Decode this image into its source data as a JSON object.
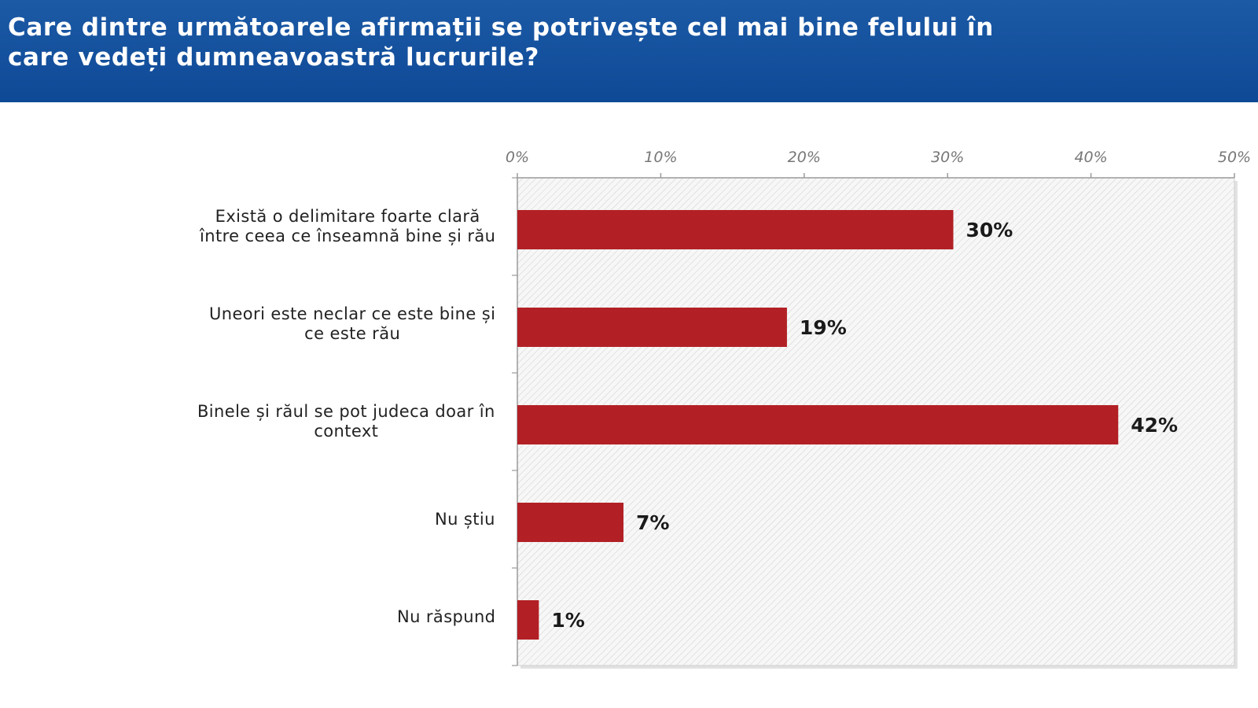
{
  "header": {
    "title_lines": [
      "Care dintre următoarele afirmații se potrivește cel mai bine felului în",
      "care vedeți dumneavoastră lucrurile?"
    ]
  },
  "colors": {
    "header_bg": "#1256a4",
    "bar": "#b22025",
    "header_text": "#ffffff"
  },
  "chart_data": {
    "type": "bar",
    "orientation": "horizontal",
    "title": "Care dintre următoarele afirmații se potrivește cel mai bine felului în care vedeți dumneavoastră lucrurile?",
    "categories": [
      [
        "Există o delimitare foarte clară",
        "între ceea ce înseamnă bine și rău"
      ],
      [
        "Uneori este neclar ce este bine și",
        "ce este rău"
      ],
      [
        "Binele și răul se pot judeca doar în",
        "context"
      ],
      [
        "Nu știu"
      ],
      [
        "Nu răspund"
      ]
    ],
    "values": [
      30.4,
      18.8,
      41.9,
      7.4,
      1.5
    ],
    "value_labels": [
      "30%",
      "19%",
      "42%",
      "7%",
      "1%"
    ],
    "xlim": [
      0,
      50
    ],
    "x_ticks": [
      "0%",
      "10%",
      "20%",
      "30%",
      "40%",
      "50%"
    ],
    "x_axis_position": "top",
    "grid": false,
    "legend": "none",
    "plot_background": "hatched"
  }
}
